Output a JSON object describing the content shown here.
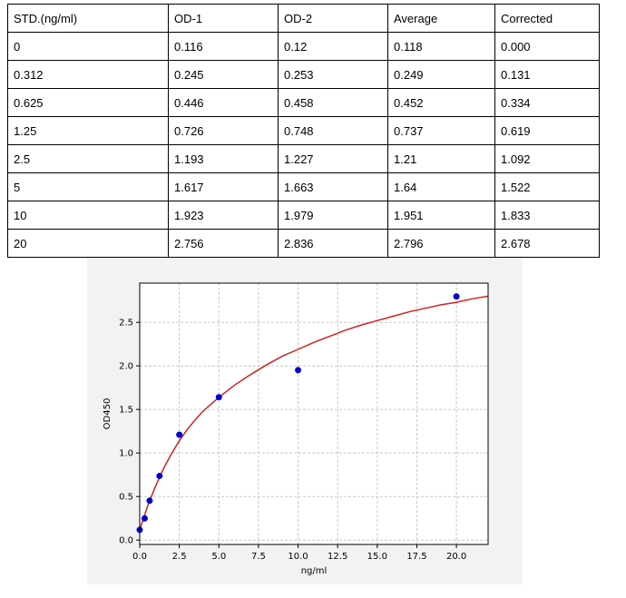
{
  "table": {
    "headers": [
      "STD.(ng/ml)",
      "OD-1",
      "OD-2",
      "Average",
      "Corrected"
    ],
    "rows": [
      [
        "0",
        "0.116",
        "0.12",
        "0.118",
        "0.000"
      ],
      [
        "0.312",
        "0.245",
        "0.253",
        "0.249",
        "0.131"
      ],
      [
        "0.625",
        "0.446",
        "0.458",
        "0.452",
        "0.334"
      ],
      [
        "1.25",
        "0.726",
        "0.748",
        "0.737",
        "0.619"
      ],
      [
        "2.5",
        "1.193",
        "1.227",
        "1.21",
        "1.092"
      ],
      [
        "5",
        "1.617",
        "1.663",
        "1.64",
        "1.522"
      ],
      [
        "10",
        "1.923",
        "1.979",
        "1.951",
        "1.833"
      ],
      [
        "20",
        "2.756",
        "2.836",
        "2.796",
        "2.678"
      ]
    ]
  },
  "chart_data": {
    "type": "scatter",
    "xlabel": "ng/ml",
    "ylabel": "OD450",
    "xlim": [
      0,
      22
    ],
    "ylim": [
      -0.05,
      2.95
    ],
    "xticks": [
      "0.0",
      "2.5",
      "5.0",
      "7.5",
      "10.0",
      "12.5",
      "15.0",
      "17.5",
      "20.0"
    ],
    "yticks": [
      "0.0",
      "0.5",
      "1.0",
      "1.5",
      "2.0",
      "2.5"
    ],
    "grid": true,
    "points": {
      "x": [
        0,
        0.312,
        0.625,
        1.25,
        2.5,
        5,
        10,
        20
      ],
      "y": [
        0.118,
        0.249,
        0.452,
        0.737,
        1.21,
        1.64,
        1.951,
        2.796
      ],
      "color": "#0000cc"
    },
    "fit_curve": {
      "color": "#cc2222",
      "x": [
        0,
        0.5,
        1,
        1.5,
        2,
        2.5,
        3,
        3.5,
        4,
        5,
        6,
        7,
        8,
        9,
        10,
        11,
        12,
        13,
        14,
        15,
        16,
        17,
        18,
        19,
        20,
        21,
        22
      ],
      "y": [
        0.12,
        0.39,
        0.62,
        0.82,
        0.99,
        1.14,
        1.27,
        1.38,
        1.48,
        1.64,
        1.78,
        1.9,
        2.01,
        2.11,
        2.19,
        2.27,
        2.34,
        2.41,
        2.47,
        2.52,
        2.57,
        2.62,
        2.66,
        2.7,
        2.73,
        2.77,
        2.8
      ]
    }
  }
}
